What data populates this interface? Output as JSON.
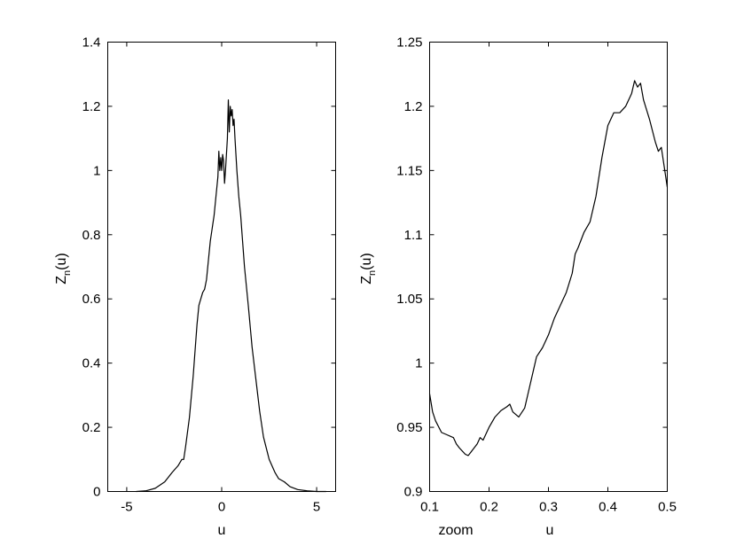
{
  "chart_data": [
    {
      "type": "line",
      "xlabel": "u",
      "ylabel_main": "Z",
      "ylabel_sub": "n",
      "ylabel_tail": "(u)",
      "xlim": [
        -6,
        6
      ],
      "ylim": [
        0,
        1.4
      ],
      "xticks": [
        -5,
        0,
        5
      ],
      "xtick_labels": [
        "-5",
        "0",
        "5"
      ],
      "yticks": [
        0,
        0.2,
        0.4,
        0.6,
        0.8,
        1,
        1.2,
        1.4
      ],
      "ytick_labels": [
        "0",
        "0.2",
        "0.4",
        "0.6",
        "0.8",
        "1",
        "1.2",
        "1.4"
      ],
      "grid": false,
      "x": [
        -4.5,
        -4.0,
        -3.5,
        -3.0,
        -2.6,
        -2.3,
        -2.1,
        -2.0,
        -1.9,
        -1.7,
        -1.5,
        -1.3,
        -1.2,
        -1.1,
        -1.0,
        -0.9,
        -0.8,
        -0.7,
        -0.6,
        -0.5,
        -0.4,
        -0.3,
        -0.2,
        -0.15,
        -0.1,
        -0.05,
        0.0,
        0.05,
        0.1,
        0.15,
        0.2,
        0.3,
        0.35,
        0.4,
        0.45,
        0.5,
        0.55,
        0.6,
        0.65,
        0.7,
        0.75,
        0.8,
        0.9,
        1.0,
        1.1,
        1.2,
        1.4,
        1.6,
        1.8,
        2.0,
        2.2,
        2.5,
        2.8,
        3.0,
        3.3,
        3.6,
        4.0,
        4.5,
        5.0,
        5.5
      ],
      "y": [
        0.0,
        0.002,
        0.01,
        0.03,
        0.06,
        0.08,
        0.1,
        0.1,
        0.14,
        0.23,
        0.36,
        0.52,
        0.58,
        0.6,
        0.62,
        0.63,
        0.66,
        0.72,
        0.78,
        0.82,
        0.86,
        0.92,
        0.98,
        1.06,
        1.0,
        1.04,
        1.0,
        1.05,
        1.03,
        0.96,
        1.0,
        1.1,
        1.22,
        1.12,
        1.2,
        1.17,
        1.19,
        1.14,
        1.16,
        1.1,
        1.05,
        1.0,
        0.92,
        0.86,
        0.78,
        0.7,
        0.58,
        0.45,
        0.35,
        0.25,
        0.17,
        0.1,
        0.06,
        0.04,
        0.03,
        0.015,
        0.006,
        0.002,
        0.0,
        0.0
      ]
    },
    {
      "type": "line",
      "xlabel": "u",
      "ylabel_main": "Z",
      "ylabel_sub": "n",
      "ylabel_tail": "(u)",
      "annotation": "zoom",
      "xlim": [
        0.1,
        0.5
      ],
      "ylim": [
        0.9,
        1.25
      ],
      "xticks": [
        0.1,
        0.2,
        0.3,
        0.4,
        0.5
      ],
      "xtick_labels": [
        "0.1",
        "0.2",
        "0.3",
        "0.4",
        "0.5"
      ],
      "yticks": [
        0.9,
        0.95,
        1,
        1.05,
        1.1,
        1.15,
        1.2,
        1.25
      ],
      "ytick_labels": [
        "0.9",
        "0.95",
        "1",
        "1.05",
        "1.1",
        "1.15",
        "1.2",
        "1.25"
      ],
      "grid": false,
      "x": [
        0.1,
        0.105,
        0.11,
        0.12,
        0.13,
        0.14,
        0.145,
        0.15,
        0.16,
        0.165,
        0.17,
        0.18,
        0.185,
        0.19,
        0.2,
        0.21,
        0.22,
        0.23,
        0.235,
        0.24,
        0.25,
        0.26,
        0.27,
        0.275,
        0.28,
        0.29,
        0.3,
        0.31,
        0.32,
        0.33,
        0.34,
        0.345,
        0.35,
        0.36,
        0.37,
        0.38,
        0.39,
        0.4,
        0.41,
        0.42,
        0.43,
        0.44,
        0.445,
        0.45,
        0.455,
        0.46,
        0.47,
        0.48,
        0.485,
        0.49,
        0.5
      ],
      "y": [
        0.976,
        0.962,
        0.955,
        0.946,
        0.944,
        0.942,
        0.937,
        0.934,
        0.929,
        0.928,
        0.931,
        0.937,
        0.942,
        0.94,
        0.95,
        0.958,
        0.963,
        0.966,
        0.968,
        0.962,
        0.958,
        0.965,
        0.985,
        0.995,
        1.005,
        1.012,
        1.022,
        1.035,
        1.045,
        1.055,
        1.07,
        1.085,
        1.09,
        1.102,
        1.11,
        1.13,
        1.16,
        1.185,
        1.195,
        1.195,
        1.2,
        1.21,
        1.22,
        1.215,
        1.218,
        1.205,
        1.19,
        1.172,
        1.165,
        1.168,
        1.137
      ]
    }
  ]
}
